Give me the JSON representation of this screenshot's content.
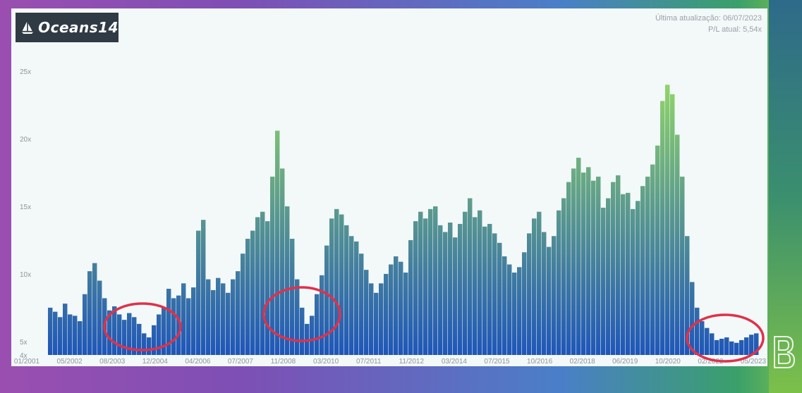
{
  "header": {
    "logo_text": "Oceans14",
    "last_update": "Última atualização: 06/07/2023",
    "current_pl": "P/L atual: 5,54x"
  },
  "colors": {
    "panel_bg": "#f3f8f9",
    "bar_low": "#1f56b8",
    "bar_high": "#8fd46a",
    "highlight_circle": "#e0314a"
  },
  "chart_data": {
    "type": "bar",
    "x_tick_labels": [
      "01/2001",
      "05/2002",
      "08/2003",
      "12/2004",
      "04/2006",
      "07/2007",
      "11/2008",
      "03/2010",
      "07/2011",
      "11/2012",
      "03/2014",
      "07/2015",
      "10/2016",
      "02/2018",
      "06/2019",
      "10/2020",
      "02/2022",
      "05/2023"
    ],
    "y_tick_labels": [
      "4x",
      "5x",
      "10x",
      "15x",
      "20x",
      "25x"
    ],
    "y_ticks": [
      4,
      5,
      10,
      15,
      20,
      25
    ],
    "ylim": [
      4,
      26
    ],
    "values": [
      7.5,
      7.2,
      6.8,
      7.8,
      7.0,
      6.9,
      6.5,
      8.5,
      10.2,
      10.8,
      9.5,
      8.2,
      7.3,
      7.6,
      7.0,
      6.6,
      7.1,
      6.8,
      6.3,
      5.6,
      5.3,
      6.2,
      7.0,
      7.5,
      8.9,
      8.2,
      8.4,
      9.3,
      8.2,
      9.0,
      13.2,
      14.0,
      9.6,
      8.8,
      9.7,
      9.3,
      8.6,
      9.6,
      10.2,
      11.5,
      12.6,
      13.2,
      14.2,
      14.6,
      13.9,
      17.2,
      20.6,
      17.8,
      15.0,
      12.6,
      9.6,
      7.5,
      6.3,
      6.9,
      8.5,
      9.9,
      12.1,
      14.1,
      14.8,
      14.4,
      13.6,
      12.8,
      12.4,
      11.5,
      10.3,
      9.3,
      8.6,
      9.3,
      10.0,
      10.7,
      11.3,
      10.9,
      10.1,
      12.5,
      13.9,
      14.6,
      14.1,
      14.8,
      15.0,
      13.6,
      13.1,
      13.8,
      12.7,
      13.7,
      14.6,
      15.6,
      14.2,
      14.7,
      13.5,
      13.7,
      13.0,
      12.3,
      11.3,
      10.7,
      10.1,
      10.5,
      11.6,
      13.0,
      14.1,
      14.6,
      13.1,
      12.0,
      12.8,
      14.7,
      15.6,
      16.8,
      17.8,
      18.6,
      17.5,
      17.9,
      16.9,
      17.2,
      14.9,
      15.6,
      16.8,
      17.3,
      15.9,
      16.0,
      14.8,
      15.4,
      16.5,
      17.2,
      18.1,
      19.5,
      22.8,
      24.0,
      23.3,
      20.3,
      17.2,
      12.8,
      9.4,
      7.5,
      6.5,
      6.0,
      5.6,
      5.1,
      5.2,
      5.3,
      5.0,
      4.9,
      5.1,
      5.3,
      5.5,
      5.6
    ]
  },
  "annotations": [
    {
      "period": "2003",
      "label": "low-pl-circle-2003"
    },
    {
      "period": "2008",
      "label": "low-pl-circle-2008"
    },
    {
      "period": "2022-2023",
      "label": "low-pl-circle-2022"
    }
  ]
}
